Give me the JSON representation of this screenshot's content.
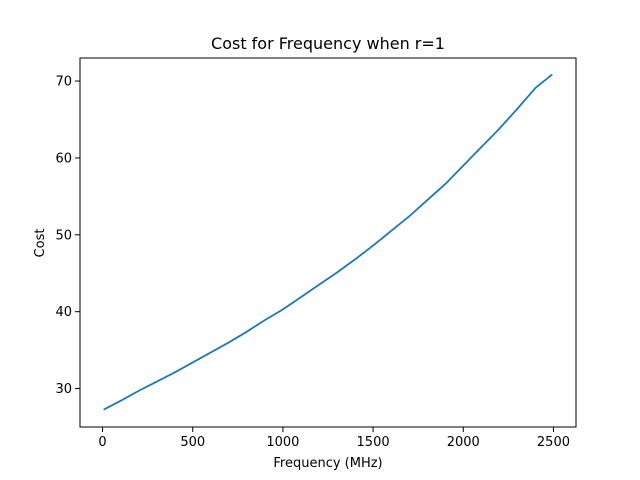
{
  "chart_data": {
    "type": "line",
    "title": "Cost for Frequency when r=1",
    "xlabel": "Frequency (MHz)",
    "ylabel": "Cost",
    "xlim": [
      -125,
      2625
    ],
    "ylim": [
      25.0,
      73.0
    ],
    "xticks": [
      0,
      500,
      1000,
      1500,
      2000,
      2500
    ],
    "yticks": [
      30,
      40,
      50,
      60,
      70
    ],
    "grid": false,
    "series": [
      {
        "color": "#1f77b4",
        "x": [
          10,
          100,
          200,
          300,
          400,
          500,
          600,
          700,
          800,
          900,
          1000,
          1100,
          1200,
          1300,
          1400,
          1500,
          1600,
          1700,
          1800,
          1900,
          2000,
          2100,
          2200,
          2300,
          2400,
          2490
        ],
        "y": [
          27.3,
          28.4,
          29.7,
          30.9,
          32.1,
          33.4,
          34.7,
          36.0,
          37.4,
          38.9,
          40.3,
          41.9,
          43.5,
          45.1,
          46.8,
          48.6,
          50.5,
          52.4,
          54.5,
          56.6,
          59.0,
          61.4,
          63.8,
          66.4,
          69.1,
          70.8
        ]
      }
    ]
  }
}
